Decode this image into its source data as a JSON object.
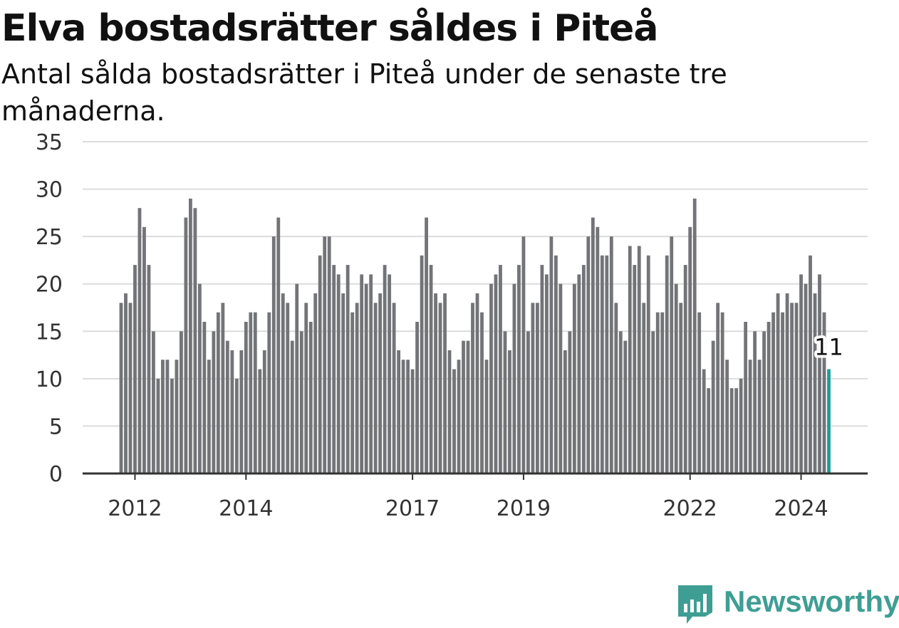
{
  "chart_data": {
    "type": "bar",
    "title": "Elva bostadsrätter såldes i Piteå",
    "subtitle": "Antal sålda bostadsrätter i Piteå under de senaste tre månaderna.",
    "ylim": [
      0,
      35
    ],
    "y_ticks": [
      0,
      5,
      10,
      15,
      20,
      25,
      30,
      35
    ],
    "x_ticks": [
      {
        "label": "2012",
        "month": "2012-01"
      },
      {
        "label": "2014",
        "month": "2014-01"
      },
      {
        "label": "2017",
        "month": "2017-01"
      },
      {
        "label": "2019",
        "month": "2019-01"
      },
      {
        "label": "2022",
        "month": "2022-01"
      },
      {
        "label": "2024",
        "month": "2024-01"
      }
    ],
    "grid": true,
    "start_month": "2011-10",
    "values": [
      18,
      19,
      18,
      22,
      28,
      26,
      22,
      15,
      10,
      12,
      12,
      10,
      12,
      15,
      27,
      29,
      28,
      20,
      16,
      12,
      15,
      17,
      18,
      14,
      13,
      10,
      13,
      16,
      17,
      17,
      11,
      13,
      17,
      25,
      27,
      19,
      18,
      14,
      20,
      15,
      18,
      16,
      19,
      23,
      25,
      25,
      22,
      21,
      19,
      22,
      17,
      18,
      21,
      20,
      21,
      18,
      19,
      22,
      21,
      18,
      13,
      12,
      12,
      11,
      16,
      23,
      27,
      22,
      19,
      18,
      19,
      13,
      11,
      12,
      14,
      14,
      18,
      19,
      17,
      12,
      20,
      21,
      22,
      15,
      13,
      20,
      22,
      25,
      15,
      18,
      18,
      22,
      21,
      25,
      23,
      20,
      13,
      15,
      20,
      21,
      22,
      25,
      27,
      26,
      23,
      23,
      25,
      18,
      15,
      14,
      24,
      22,
      24,
      18,
      23,
      15,
      17,
      17,
      23,
      25,
      20,
      18,
      22,
      26,
      29,
      17,
      11,
      9,
      14,
      18,
      17,
      12,
      9,
      9,
      10,
      16,
      12,
      15,
      12,
      15,
      16,
      17,
      19,
      17,
      19,
      18,
      18,
      21,
      20,
      23,
      19,
      21,
      17,
      11
    ],
    "bar_color": "#737478",
    "highlight_color": "#1a9e98",
    "highlight_label": "11"
  },
  "logo": {
    "text": "Newsworthy",
    "color": "#3f9e94"
  }
}
